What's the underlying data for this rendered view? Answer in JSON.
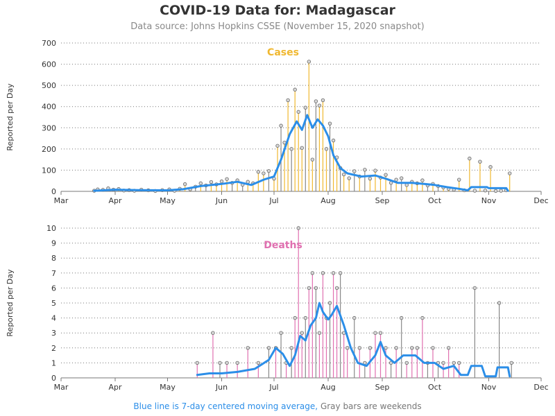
{
  "title": "COVID-19 Data for: Madagascar",
  "subtitle": "Data source: Johns Hopkins CSSE (November 15, 2020 snapshot)",
  "footnote": {
    "blue": "Blue line is 7-day centered moving average,",
    "gray": "Gray bars are weekends"
  },
  "colors": {
    "cases": "#f0b830",
    "deaths": "#e070b0",
    "weekend": "#888888",
    "average": "#2b8ee8",
    "grid": "#777777",
    "text": "#333333"
  },
  "chart_data": [
    {
      "type": "bar",
      "panel_label": "Cases",
      "ylabel": "Reported per Day",
      "ylim": [
        0,
        700
      ],
      "y_ticks": [
        0,
        100,
        200,
        300,
        400,
        500,
        600,
        700
      ],
      "x_ticks": [
        "Mar",
        "Apr",
        "May",
        "Jun",
        "Jul",
        "Aug",
        "Sep",
        "Oct",
        "Nov",
        "Dec"
      ],
      "x_tick_dates": [
        "2020-03-01",
        "2020-04-01",
        "2020-05-01",
        "2020-06-01",
        "2020-07-01",
        "2020-08-01",
        "2020-09-01",
        "2020-10-01",
        "2020-11-01",
        "2020-12-01"
      ],
      "grid": "horizontal dotted",
      "points": [
        {
          "date": "2020-03-20",
          "value": 3
        },
        {
          "date": "2020-03-22",
          "value": 9
        },
        {
          "date": "2020-03-25",
          "value": 7
        },
        {
          "date": "2020-03-28",
          "value": 14
        },
        {
          "date": "2020-03-31",
          "value": 8
        },
        {
          "date": "2020-04-03",
          "value": 11
        },
        {
          "date": "2020-04-06",
          "value": 4
        },
        {
          "date": "2020-04-09",
          "value": 6
        },
        {
          "date": "2020-04-12",
          "value": 3
        },
        {
          "date": "2020-04-16",
          "value": 8
        },
        {
          "date": "2020-04-20",
          "value": 5
        },
        {
          "date": "2020-04-24",
          "value": 2
        },
        {
          "date": "2020-04-28",
          "value": 6
        },
        {
          "date": "2020-05-02",
          "value": 9
        },
        {
          "date": "2020-05-05",
          "value": 3
        },
        {
          "date": "2020-05-08",
          "value": 12
        },
        {
          "date": "2020-05-11",
          "value": 34
        },
        {
          "date": "2020-05-14",
          "value": 10
        },
        {
          "date": "2020-05-17",
          "value": 22
        },
        {
          "date": "2020-05-20",
          "value": 38
        },
        {
          "date": "2020-05-23",
          "value": 28
        },
        {
          "date": "2020-05-26",
          "value": 44
        },
        {
          "date": "2020-05-29",
          "value": 33
        },
        {
          "date": "2020-06-01",
          "value": 47
        },
        {
          "date": "2020-06-04",
          "value": 58
        },
        {
          "date": "2020-06-07",
          "value": 40
        },
        {
          "date": "2020-06-10",
          "value": 52
        },
        {
          "date": "2020-06-13",
          "value": 31
        },
        {
          "date": "2020-06-16",
          "value": 45
        },
        {
          "date": "2020-06-19",
          "value": 38
        },
        {
          "date": "2020-06-22",
          "value": 92
        },
        {
          "date": "2020-06-25",
          "value": 85
        },
        {
          "date": "2020-06-28",
          "value": 96
        },
        {
          "date": "2020-07-01",
          "value": 60
        },
        {
          "date": "2020-07-03",
          "value": 215
        },
        {
          "date": "2020-07-05",
          "value": 310
        },
        {
          "date": "2020-07-07",
          "value": 230
        },
        {
          "date": "2020-07-09",
          "value": 430
        },
        {
          "date": "2020-07-11",
          "value": 200
        },
        {
          "date": "2020-07-13",
          "value": 480
        },
        {
          "date": "2020-07-15",
          "value": 375
        },
        {
          "date": "2020-07-17",
          "value": 205
        },
        {
          "date": "2020-07-19",
          "value": 395
        },
        {
          "date": "2020-07-21",
          "value": 612
        },
        {
          "date": "2020-07-23",
          "value": 150
        },
        {
          "date": "2020-07-25",
          "value": 425
        },
        {
          "date": "2020-07-27",
          "value": 405
        },
        {
          "date": "2020-07-29",
          "value": 430
        },
        {
          "date": "2020-07-31",
          "value": 200
        },
        {
          "date": "2020-08-02",
          "value": 320
        },
        {
          "date": "2020-08-04",
          "value": 240
        },
        {
          "date": "2020-08-06",
          "value": 160
        },
        {
          "date": "2020-08-08",
          "value": 110
        },
        {
          "date": "2020-08-10",
          "value": 80
        },
        {
          "date": "2020-08-13",
          "value": 62
        },
        {
          "date": "2020-08-16",
          "value": 95
        },
        {
          "date": "2020-08-19",
          "value": 70
        },
        {
          "date": "2020-08-22",
          "value": 102
        },
        {
          "date": "2020-08-25",
          "value": 60
        },
        {
          "date": "2020-08-28",
          "value": 98
        },
        {
          "date": "2020-08-31",
          "value": 65
        },
        {
          "date": "2020-09-03",
          "value": 78
        },
        {
          "date": "2020-09-06",
          "value": 40
        },
        {
          "date": "2020-09-09",
          "value": 55
        },
        {
          "date": "2020-09-12",
          "value": 62
        },
        {
          "date": "2020-09-15",
          "value": 30
        },
        {
          "date": "2020-09-18",
          "value": 45
        },
        {
          "date": "2020-09-21",
          "value": 38
        },
        {
          "date": "2020-09-24",
          "value": 52
        },
        {
          "date": "2020-09-27",
          "value": 28
        },
        {
          "date": "2020-09-30",
          "value": 35
        },
        {
          "date": "2020-10-03",
          "value": 25
        },
        {
          "date": "2020-10-06",
          "value": 18
        },
        {
          "date": "2020-10-09",
          "value": 12
        },
        {
          "date": "2020-10-12",
          "value": 8
        },
        {
          "date": "2020-10-15",
          "value": 55
        },
        {
          "date": "2020-10-18",
          "value": 5
        },
        {
          "date": "2020-10-21",
          "value": 155
        },
        {
          "date": "2020-10-24",
          "value": 3
        },
        {
          "date": "2020-10-27",
          "value": 140
        },
        {
          "date": "2020-10-30",
          "value": 4
        },
        {
          "date": "2020-11-02",
          "value": 115
        },
        {
          "date": "2020-11-05",
          "value": 2
        },
        {
          "date": "2020-11-08",
          "value": 3
        },
        {
          "date": "2020-11-11",
          "value": 5
        },
        {
          "date": "2020-11-13",
          "value": 85
        }
      ],
      "moving_average": [
        {
          "date": "2020-03-20",
          "value": 3
        },
        {
          "date": "2020-04-01",
          "value": 8
        },
        {
          "date": "2020-04-15",
          "value": 6
        },
        {
          "date": "2020-05-01",
          "value": 5
        },
        {
          "date": "2020-05-10",
          "value": 10
        },
        {
          "date": "2020-05-20",
          "value": 25
        },
        {
          "date": "2020-06-01",
          "value": 35
        },
        {
          "date": "2020-06-10",
          "value": 45
        },
        {
          "date": "2020-06-18",
          "value": 30
        },
        {
          "date": "2020-06-25",
          "value": 55
        },
        {
          "date": "2020-07-01",
          "value": 70
        },
        {
          "date": "2020-07-05",
          "value": 150
        },
        {
          "date": "2020-07-10",
          "value": 270
        },
        {
          "date": "2020-07-14",
          "value": 330
        },
        {
          "date": "2020-07-17",
          "value": 290
        },
        {
          "date": "2020-07-20",
          "value": 360
        },
        {
          "date": "2020-07-23",
          "value": 300
        },
        {
          "date": "2020-07-26",
          "value": 340
        },
        {
          "date": "2020-07-29",
          "value": 310
        },
        {
          "date": "2020-08-01",
          "value": 260
        },
        {
          "date": "2020-08-04",
          "value": 170
        },
        {
          "date": "2020-08-08",
          "value": 110
        },
        {
          "date": "2020-08-12",
          "value": 85
        },
        {
          "date": "2020-08-20",
          "value": 70
        },
        {
          "date": "2020-08-28",
          "value": 75
        },
        {
          "date": "2020-09-03",
          "value": 60
        },
        {
          "date": "2020-09-10",
          "value": 40
        },
        {
          "date": "2020-09-18",
          "value": 40
        },
        {
          "date": "2020-09-25",
          "value": 35
        },
        {
          "date": "2020-10-01",
          "value": 30
        },
        {
          "date": "2020-10-08",
          "value": 20
        },
        {
          "date": "2020-10-15",
          "value": 12
        },
        {
          "date": "2020-10-20",
          "value": 5
        },
        {
          "date": "2020-10-22",
          "value": 20
        },
        {
          "date": "2020-10-31",
          "value": 20
        },
        {
          "date": "2020-11-01",
          "value": 15
        },
        {
          "date": "2020-11-11",
          "value": 15
        },
        {
          "date": "2020-11-12",
          "value": 3
        }
      ]
    },
    {
      "type": "bar",
      "panel_label": "Deaths",
      "ylabel": "Reported per Day",
      "ylim": [
        0,
        10
      ],
      "y_ticks": [
        0,
        1,
        2,
        3,
        4,
        5,
        6,
        7,
        8,
        9,
        10
      ],
      "x_ticks": [
        "Mar",
        "Apr",
        "May",
        "Jun",
        "Jul",
        "Aug",
        "Sep",
        "Oct",
        "Nov",
        "Dec"
      ],
      "x_tick_dates": [
        "2020-03-01",
        "2020-04-01",
        "2020-05-01",
        "2020-06-01",
        "2020-07-01",
        "2020-08-01",
        "2020-09-01",
        "2020-10-01",
        "2020-11-01",
        "2020-12-01"
      ],
      "grid": "horizontal dotted",
      "points": [
        {
          "date": "2020-05-18",
          "value": 1
        },
        {
          "date": "2020-05-27",
          "value": 3
        },
        {
          "date": "2020-05-31",
          "value": 1
        },
        {
          "date": "2020-06-04",
          "value": 1
        },
        {
          "date": "2020-06-10",
          "value": 1
        },
        {
          "date": "2020-06-16",
          "value": 2
        },
        {
          "date": "2020-06-22",
          "value": 1
        },
        {
          "date": "2020-06-28",
          "value": 2
        },
        {
          "date": "2020-07-02",
          "value": 2
        },
        {
          "date": "2020-07-05",
          "value": 3
        },
        {
          "date": "2020-07-08",
          "value": 1
        },
        {
          "date": "2020-07-11",
          "value": 2
        },
        {
          "date": "2020-07-13",
          "value": 4
        },
        {
          "date": "2020-07-15",
          "value": 10
        },
        {
          "date": "2020-07-17",
          "value": 3
        },
        {
          "date": "2020-07-19",
          "value": 4
        },
        {
          "date": "2020-07-21",
          "value": 6
        },
        {
          "date": "2020-07-23",
          "value": 7
        },
        {
          "date": "2020-07-25",
          "value": 6
        },
        {
          "date": "2020-07-27",
          "value": 3
        },
        {
          "date": "2020-07-29",
          "value": 7
        },
        {
          "date": "2020-07-31",
          "value": 4
        },
        {
          "date": "2020-08-02",
          "value": 5
        },
        {
          "date": "2020-08-04",
          "value": 7
        },
        {
          "date": "2020-08-06",
          "value": 6
        },
        {
          "date": "2020-08-08",
          "value": 7
        },
        {
          "date": "2020-08-10",
          "value": 3
        },
        {
          "date": "2020-08-12",
          "value": 2
        },
        {
          "date": "2020-08-16",
          "value": 4
        },
        {
          "date": "2020-08-19",
          "value": 2
        },
        {
          "date": "2020-08-22",
          "value": 1
        },
        {
          "date": "2020-08-25",
          "value": 2
        },
        {
          "date": "2020-08-28",
          "value": 3
        },
        {
          "date": "2020-08-31",
          "value": 3
        },
        {
          "date": "2020-09-03",
          "value": 2
        },
        {
          "date": "2020-09-06",
          "value": 1
        },
        {
          "date": "2020-09-09",
          "value": 2
        },
        {
          "date": "2020-09-12",
          "value": 4
        },
        {
          "date": "2020-09-15",
          "value": 1
        },
        {
          "date": "2020-09-18",
          "value": 2
        },
        {
          "date": "2020-09-21",
          "value": 2
        },
        {
          "date": "2020-09-24",
          "value": 4
        },
        {
          "date": "2020-09-27",
          "value": 1
        },
        {
          "date": "2020-09-30",
          "value": 2
        },
        {
          "date": "2020-10-03",
          "value": 1
        },
        {
          "date": "2020-10-06",
          "value": 1
        },
        {
          "date": "2020-10-09",
          "value": 2
        },
        {
          "date": "2020-10-12",
          "value": 1
        },
        {
          "date": "2020-10-15",
          "value": 1
        },
        {
          "date": "2020-10-24",
          "value": 6
        },
        {
          "date": "2020-11-07",
          "value": 5
        },
        {
          "date": "2020-11-14",
          "value": 1
        }
      ],
      "moving_average": [
        {
          "date": "2020-05-18",
          "value": 0.2
        },
        {
          "date": "2020-05-25",
          "value": 0.3
        },
        {
          "date": "2020-06-01",
          "value": 0.3
        },
        {
          "date": "2020-06-10",
          "value": 0.4
        },
        {
          "date": "2020-06-20",
          "value": 0.6
        },
        {
          "date": "2020-06-28",
          "value": 1.2
        },
        {
          "date": "2020-07-02",
          "value": 2.0
        },
        {
          "date": "2020-07-06",
          "value": 1.6
        },
        {
          "date": "2020-07-10",
          "value": 0.8
        },
        {
          "date": "2020-07-13",
          "value": 1.5
        },
        {
          "date": "2020-07-16",
          "value": 2.8
        },
        {
          "date": "2020-07-19",
          "value": 2.5
        },
        {
          "date": "2020-07-22",
          "value": 3.5
        },
        {
          "date": "2020-07-25",
          "value": 4.0
        },
        {
          "date": "2020-07-27",
          "value": 5.0
        },
        {
          "date": "2020-07-29",
          "value": 4.4
        },
        {
          "date": "2020-08-01",
          "value": 3.9
        },
        {
          "date": "2020-08-03",
          "value": 4.2
        },
        {
          "date": "2020-08-06",
          "value": 4.8
        },
        {
          "date": "2020-08-10",
          "value": 3.5
        },
        {
          "date": "2020-08-14",
          "value": 2.0
        },
        {
          "date": "2020-08-18",
          "value": 1.0
        },
        {
          "date": "2020-08-23",
          "value": 0.8
        },
        {
          "date": "2020-08-28",
          "value": 1.5
        },
        {
          "date": "2020-08-31",
          "value": 2.4
        },
        {
          "date": "2020-09-03",
          "value": 1.5
        },
        {
          "date": "2020-09-08",
          "value": 1.0
        },
        {
          "date": "2020-09-13",
          "value": 1.5
        },
        {
          "date": "2020-09-20",
          "value": 1.5
        },
        {
          "date": "2020-09-25",
          "value": 1.0
        },
        {
          "date": "2020-10-01",
          "value": 1.0
        },
        {
          "date": "2020-10-06",
          "value": 0.6
        },
        {
          "date": "2020-10-12",
          "value": 0.8
        },
        {
          "date": "2020-10-16",
          "value": 0.2
        },
        {
          "date": "2020-10-20",
          "value": 0.2
        },
        {
          "date": "2020-10-22",
          "value": 0.8
        },
        {
          "date": "2020-10-28",
          "value": 0.8
        },
        {
          "date": "2020-10-30",
          "value": 0.1
        },
        {
          "date": "2020-11-05",
          "value": 0.1
        },
        {
          "date": "2020-11-06",
          "value": 0.7
        },
        {
          "date": "2020-11-12",
          "value": 0.7
        },
        {
          "date": "2020-11-13",
          "value": 0.1
        }
      ]
    }
  ]
}
